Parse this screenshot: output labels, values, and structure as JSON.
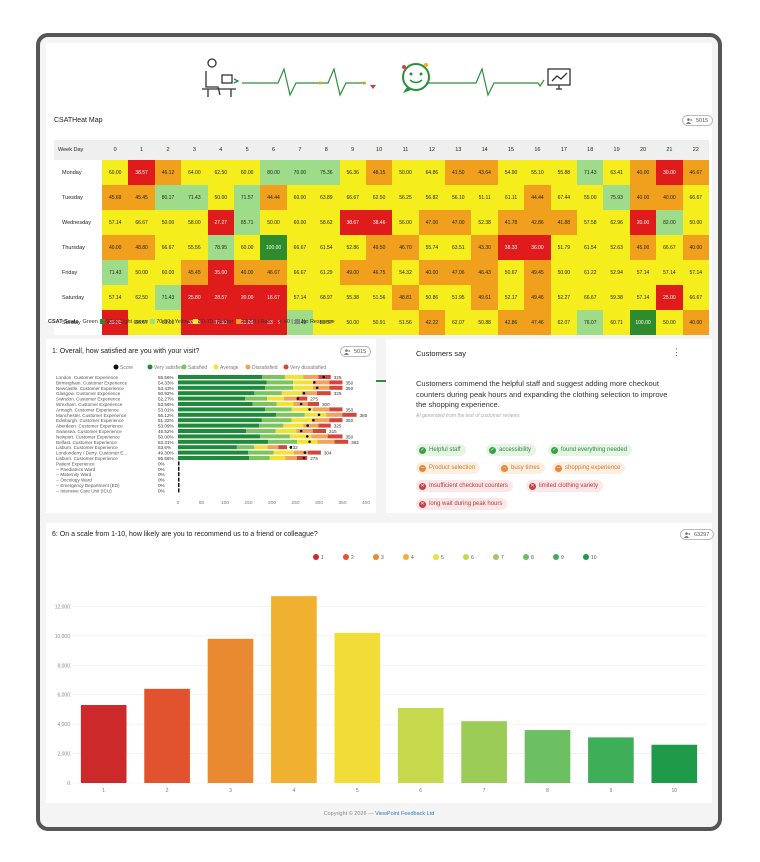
{
  "colors": {
    "green": "#2e8b2e",
    "light_green": "#9edc8a",
    "yellow": "#f5ee1c",
    "amber": "#f0a01c",
    "red": "#e01b1b",
    "no_response": "#888888"
  },
  "hero": {
    "icons": [
      "person-at-desk-icon",
      "chat-smile-icon",
      "monitor-chart-icon"
    ]
  },
  "heatmap": {
    "title": "CSATHeat Map",
    "badge": "5015",
    "corner": "Week Day",
    "hours": [
      "0",
      "1",
      "2",
      "3",
      "4",
      "5",
      "6",
      "7",
      "8",
      "9",
      "10",
      "11",
      "12",
      "13",
      "14",
      "15",
      "16",
      "17",
      "18",
      "19",
      "20",
      "21",
      "22"
    ],
    "rows": [
      {
        "day": "Monday",
        "cells": [
          "60.00",
          "38.57",
          "46.12",
          "64.00",
          "62.50",
          "60.00",
          "80.00",
          "70.00",
          "75.36",
          "56.36",
          "48.15",
          "50.00",
          "64.86",
          "41.50",
          "43.64",
          "54.90",
          "55.10",
          "55.88",
          "71.43",
          "63.41",
          "40.00",
          "30.00",
          "46.67"
        ]
      },
      {
        "day": "Tuesday",
        "cells": [
          "45.69",
          "45.45",
          "80.17",
          "71.43",
          "50.00",
          "71.57",
          "44.44",
          "60.00",
          "63.89",
          "66.67",
          "62.50",
          "56.25",
          "56.82",
          "56.10",
          "51.11",
          "61.11",
          "44.44",
          "67.44",
          "55.00",
          "75.93",
          "40.00",
          "40.00",
          "66.67"
        ]
      },
      {
        "day": "Wednesday",
        "cells": [
          "57.14",
          "66.67",
          "50.00",
          "58.00",
          "27.27",
          "85.71",
          "50.00",
          "60.00",
          "58.62",
          "38.67",
          "38.46",
          "56.00",
          "47.00",
          "47.00",
          "52.38",
          "41.78",
          "42.86",
          "41.88",
          "57.58",
          "62.96",
          "20.00",
          "82.00",
          "50.00"
        ]
      },
      {
        "day": "Thursday",
        "cells": [
          "40.00",
          "48.80",
          "66.67",
          "55.56",
          "78.95",
          "60.00",
          "100.00",
          "66.67",
          "61.54",
          "52.86",
          "49.50",
          "46.70",
          "55.74",
          "63.51",
          "43.30",
          "38.33",
          "36.00",
          "51.79",
          "61.54",
          "52.63",
          "45.00",
          "66.67",
          "40.00"
        ]
      },
      {
        "day": "Friday",
        "cells": [
          "71.43",
          "50.00",
          "60.00",
          "45.45",
          "35.00",
          "40.00",
          "46.67",
          "66.67",
          "61.29",
          "49.00",
          "46.75",
          "54.32",
          "40.00",
          "47.06",
          "46.43",
          "50.67",
          "49.45",
          "50.00",
          "61.22",
          "52.94",
          "57.14",
          "57.14",
          "57.14"
        ]
      },
      {
        "day": "Saturday",
        "cells": [
          "57.14",
          "62.50",
          "71.43",
          "25.80",
          "28.57",
          "20.00",
          "16.67",
          "57.14",
          "68.97",
          "55.38",
          "51.56",
          "48.81",
          "50.86",
          "51.95",
          "49.61",
          "52.17",
          "49.46",
          "52.27",
          "66.67",
          "59.38",
          "57.14",
          "25.00",
          "66.67"
        ]
      },
      {
        "day": "Sunday",
        "cells": [
          "33.33",
          "66.67",
          "60.00",
          "33.33",
          "37.50",
          "25.00",
          "33.33",
          "71.43",
          "53.57",
          "50.00",
          "50.91",
          "51.56",
          "42.22",
          "62.07",
          "50.88",
          "42.86",
          "47.46",
          "62.07",
          "76.07",
          "60.71",
          "100.00",
          "50.00",
          "40.00"
        ]
      }
    ],
    "scale": {
      "label": "CSAT Scale",
      "items": [
        "Green",
        "90+",
        "Light green",
        "70-90",
        "Yellow",
        "50-70",
        "Amber",
        "40-50",
        "Red",
        "< 40",
        "No Response"
      ]
    }
  },
  "q1": {
    "title": "1:  Overall, how satisfied are you with your visit?",
    "badge": "5015",
    "legend": [
      "Score",
      "Very satisfied",
      "Satisfied",
      "Average",
      "Dissatisfied",
      "Very dissatisfied"
    ],
    "legend_colors": [
      "#111111",
      "#1e8a3a",
      "#7cc45e",
      "#f2e232",
      "#f0a35a",
      "#d4453a"
    ],
    "rows": [
      {
        "label": "London. Customer Experience",
        "pct": "55.56%",
        "total": "325",
        "score": 310,
        "segs": [
          0.55,
          0.15,
          0.12,
          0.1,
          0.08
        ]
      },
      {
        "label": "Birmingham. Customer Experience",
        "pct": "54.33%",
        "total": "350",
        "score": 290,
        "segs": [
          0.54,
          0.16,
          0.12,
          0.1,
          0.08
        ]
      },
      {
        "label": "Newcastle. Customer Experience",
        "pct": "53.43%",
        "total": "350",
        "score": 296,
        "segs": [
          0.53,
          0.17,
          0.12,
          0.1,
          0.08
        ]
      },
      {
        "label": "Glasgow. Customer Experience",
        "pct": "50.92%",
        "total": "325",
        "score": 268,
        "segs": [
          0.5,
          0.18,
          0.13,
          0.1,
          0.09
        ]
      },
      {
        "label": "Swindon. Customer Experience",
        "pct": "52.27%",
        "total": "275",
        "score": 255,
        "segs": [
          0.52,
          0.17,
          0.13,
          0.1,
          0.08
        ]
      },
      {
        "label": "Wrexham. Customer Experience",
        "pct": "53.56%",
        "total": "300",
        "score": 262,
        "segs": [
          0.53,
          0.17,
          0.12,
          0.1,
          0.08
        ]
      },
      {
        "label": "Armagh. Customer Experience",
        "pct": "53.01%",
        "total": "350",
        "score": 280,
        "segs": [
          0.53,
          0.16,
          0.13,
          0.1,
          0.08
        ]
      },
      {
        "label": "Manchester. Customer Experience",
        "pct": "55.12%",
        "total": "380",
        "score": 300,
        "segs": [
          0.55,
          0.16,
          0.12,
          0.09,
          0.08
        ]
      },
      {
        "label": "Edinburgh. Customer Experience",
        "pct": "51.32%",
        "total": "350",
        "score": 288,
        "segs": [
          0.51,
          0.18,
          0.13,
          0.1,
          0.08
        ]
      },
      {
        "label": "Aberdeen. Customer Experience",
        "pct": "53.09%",
        "total": "325",
        "score": 276,
        "segs": [
          0.53,
          0.16,
          0.13,
          0.1,
          0.08
        ]
      },
      {
        "label": "Swansea. Customer Experience",
        "pct": "45.52%",
        "total": "315",
        "score": 262,
        "segs": [
          0.46,
          0.2,
          0.14,
          0.11,
          0.09
        ]
      },
      {
        "label": "Newport. Customer Experience",
        "pct": "50.00%",
        "total": "350",
        "score": 275,
        "segs": [
          0.5,
          0.18,
          0.13,
          0.1,
          0.09
        ]
      },
      {
        "label": "Belfast. Customer Experience",
        "pct": "53.31%",
        "total": "362",
        "score": 280,
        "segs": [
          0.53,
          0.17,
          0.12,
          0.1,
          0.08
        ]
      },
      {
        "label": "Lisburn. Customer Experience",
        "pct": "53.6%",
        "total": "232",
        "score": 240,
        "segs": [
          0.54,
          0.16,
          0.12,
          0.1,
          0.08
        ]
      },
      {
        "label": "Londonderry / Derry. Customer E...",
        "pct": "49.30%",
        "total": "304",
        "score": 270,
        "segs": [
          0.49,
          0.18,
          0.14,
          0.1,
          0.09
        ]
      },
      {
        "label": "Lisburn. Customer Experience",
        "pct": "55.56%",
        "total": "275",
        "score": 268,
        "segs": [
          0.55,
          0.16,
          0.12,
          0.09,
          0.08
        ]
      },
      {
        "label": "Patient Experience",
        "pct": "0%",
        "total": "",
        "score": 0,
        "segs": []
      },
      {
        "label": "-- Paediatrics Ward",
        "pct": "0%",
        "total": "",
        "score": 0,
        "segs": []
      },
      {
        "label": "-- Maternity Ward",
        "pct": "0%",
        "total": "",
        "score": 0,
        "segs": []
      },
      {
        "label": "-- Oncology Ward",
        "pct": "0%",
        "total": "",
        "score": 0,
        "segs": []
      },
      {
        "label": "-- Emergency Department (ED)",
        "pct": "0%",
        "total": "",
        "score": 0,
        "segs": []
      },
      {
        "label": "-- Intensive Care Unit (ICU)",
        "pct": "0%",
        "total": "",
        "score": 0,
        "segs": []
      }
    ],
    "axis": [
      "0",
      "50",
      "100",
      "150",
      "200",
      "250",
      "300",
      "350",
      "400"
    ],
    "axis_max": 400
  },
  "customers_say": {
    "title": "Customers say",
    "menu": "⋮",
    "summary": "Customers commend the helpful staff and suggest adding more checkout counters during peak hours and expanding the clothing selection to improve the shopping experience.",
    "note": "AI generated from the text of customer reviews",
    "chips": [
      {
        "tone": "g",
        "label": "Helpful staff"
      },
      {
        "tone": "g",
        "label": "accessibility"
      },
      {
        "tone": "g",
        "label": "found everything needed"
      },
      {
        "tone": "o",
        "label": "Product selection"
      },
      {
        "tone": "o",
        "label": "busy times"
      },
      {
        "tone": "o",
        "label": "shopping experience"
      },
      {
        "tone": "r",
        "label": "Insufficient checkout counters"
      },
      {
        "tone": "r",
        "label": "limited clothing variety"
      },
      {
        "tone": "r",
        "label": "long wait during peak hours"
      }
    ]
  },
  "q6": {
    "title": "6:  On a scale from 1-10, how likely are you to recommend us to a friend or colleague?",
    "badge": "63297"
  },
  "chart_data": {
    "type": "bar",
    "categories": [
      "1",
      "2",
      "3",
      "4",
      "5",
      "6",
      "7",
      "8",
      "9",
      "10"
    ],
    "series": [
      {
        "values": [
          5300,
          6400,
          9800,
          12700,
          10200,
          5100,
          4200,
          3600,
          3100,
          2600
        ]
      }
    ],
    "legend": [
      "1",
      "2",
      "3",
      "4",
      "5",
      "6",
      "7",
      "8",
      "9",
      "10"
    ],
    "colors": [
      "#cc2a2a",
      "#e0532e",
      "#ea8a30",
      "#f0b030",
      "#f2dc38",
      "#c6d84c",
      "#9ccc58",
      "#6cc062",
      "#3eae58",
      "#1e9a48"
    ],
    "ylim": [
      0,
      14000
    ],
    "yticks": [
      "0",
      "2,000",
      "4,000",
      "6,000",
      "8,000",
      "10,000",
      "12,000"
    ]
  },
  "footer": {
    "prefix": "Copyright © 2026 — ",
    "link": "ViewPoint Feedback Ltd"
  }
}
